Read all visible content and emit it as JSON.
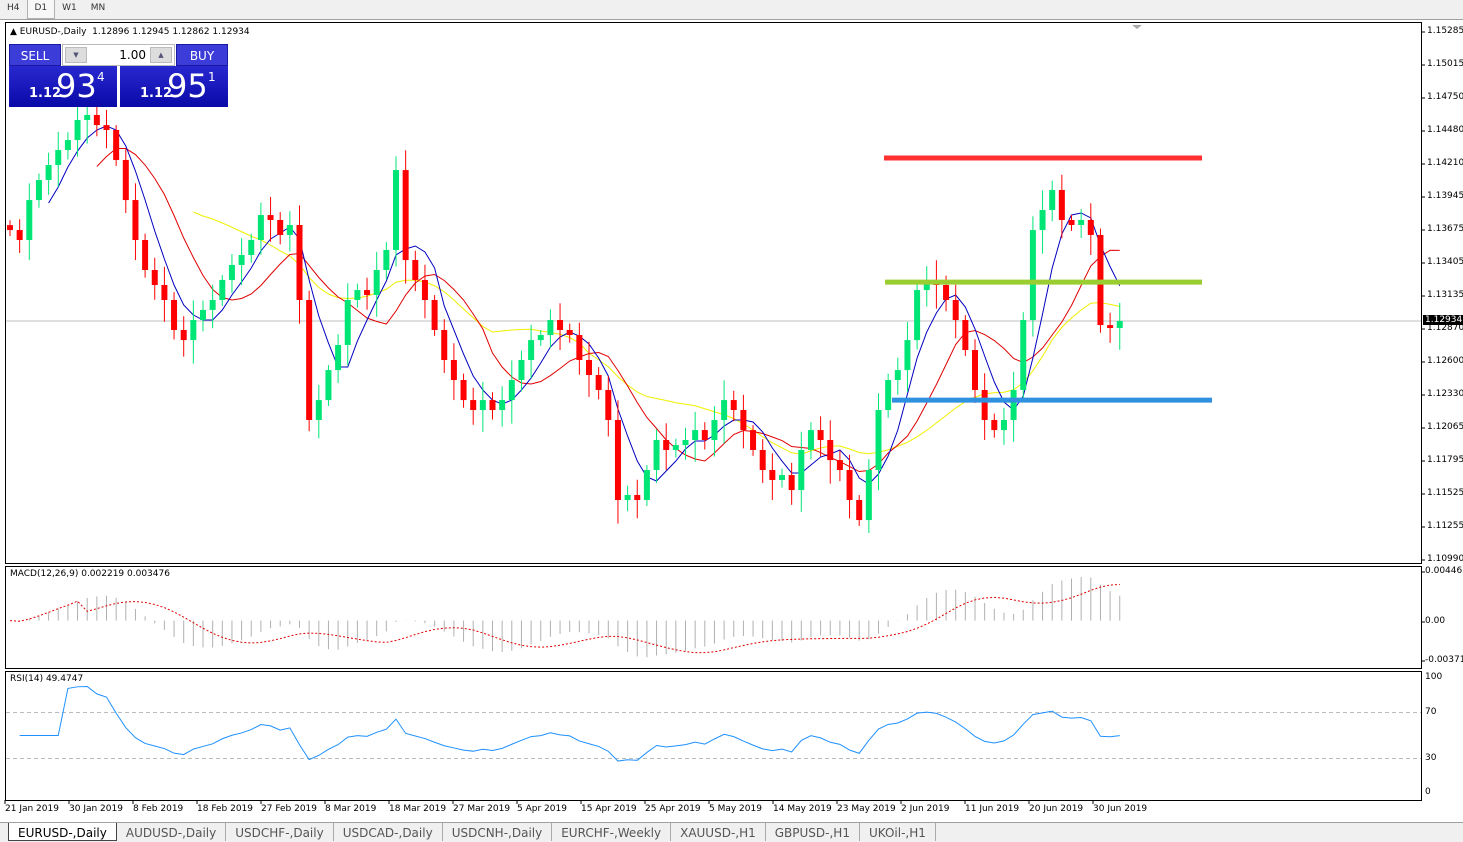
{
  "timeframes": [
    "H4",
    "D1",
    "W1",
    "MN"
  ],
  "active_timeframe": "D1",
  "chart_header": {
    "symbol": "EURUSD-,Daily",
    "ohlc": "1.12896 1.12945 1.12862 1.12934"
  },
  "one_click": {
    "sell_label": "SELL",
    "buy_label": "BUY",
    "lot": "1.00",
    "sell_big": "1.12",
    "sell_pips": "93",
    "sell_frac": "4",
    "buy_big": "1.12",
    "buy_pips": "95",
    "buy_frac": "1"
  },
  "price_axis": [
    "1.15285",
    "1.15015",
    "1.14750",
    "1.14480",
    "1.14210",
    "1.13945",
    "1.13675",
    "1.13405",
    "1.13135",
    "1.12870",
    "1.12600",
    "1.12330",
    "1.12065",
    "1.11795",
    "1.11525",
    "1.11255",
    "1.10990"
  ],
  "price_range": [
    1.1099,
    1.15285
  ],
  "current_price": "1.12934",
  "closes": [
    1.13674,
    1.13593,
    1.13918,
    1.14081,
    1.14203,
    1.14325,
    1.14406,
    1.14569,
    1.1461,
    1.14528,
    1.14488,
    1.14244,
    1.13918,
    1.13593,
    1.13349,
    1.13227,
    1.13105,
    1.12861,
    1.12779,
    1.12942,
    1.13024,
    1.13105,
    1.13268,
    1.1339,
    1.13471,
    1.13593,
    1.13796,
    1.13756,
    1.13634,
    1.13715,
    1.13105,
    1.12129,
    1.12291,
    1.12535,
    1.12739,
    1.13105,
    1.13186,
    1.13146,
    1.13349,
    1.13512,
    1.14162,
    1.1343,
    1.13268,
    1.13105,
    1.12861,
    1.12617,
    1.12454,
    1.12291,
    1.1221,
    1.12291,
    1.1221,
    1.12291,
    1.12454,
    1.12617,
    1.12779,
    1.1282,
    1.12942,
    1.12861,
    1.1282,
    1.12617,
    1.12495,
    1.12373,
    1.12129,
    1.11478,
    1.11519,
    1.11478,
    1.11722,
    1.11966,
    1.11885,
    1.11925,
    1.11966,
    1.12047,
    1.11966,
    1.12129,
    1.12291,
    1.1221,
    1.12047,
    1.11885,
    1.11722,
    1.11641,
    1.11681,
    1.11559,
    1.11885,
    1.12047,
    1.11966,
    1.11803,
    1.11722,
    1.11478,
    1.11315,
    1.11722,
    1.1221,
    1.12454,
    1.12535,
    1.12779,
    1.13186,
    1.13268,
    1.13227,
    1.13105,
    1.12942,
    1.12698,
    1.12373,
    1.12129,
    1.12047,
    1.12129,
    1.12373,
    1.12942,
    1.13674,
    1.13837,
    1.14,
    1.13756,
    1.13715,
    1.13756,
    1.13634,
    1.12901,
    1.12877,
    1.12934
  ],
  "levels": [
    {
      "price": 1.1426,
      "color": "#ff3030"
    },
    {
      "price": 1.1325,
      "color": "#9acd32"
    },
    {
      "price": 1.12291,
      "color": "#3090e0"
    }
  ],
  "colors": {
    "bull": "#00e676",
    "bear": "#ff0000",
    "ma_fast": "#0000c0",
    "ma_mid": "#e00000",
    "ma_slow": "#f0f000"
  },
  "macd": {
    "label": "MACD(12,26,9) 0.002219 0.003476",
    "axis": [
      "0.004465",
      "0.00",
      "-0.003715"
    ],
    "range": [
      -0.003715,
      0.004465
    ]
  },
  "rsi": {
    "label": "RSI(14) 49.4747",
    "axis": [
      "100",
      "70",
      "30",
      "0"
    ],
    "levels": [
      70,
      30
    ]
  },
  "dates": [
    "21 Jan 2019",
    "30 Jan 2019",
    "8 Feb 2019",
    "18 Feb 2019",
    "27 Feb 2019",
    "8 Mar 2019",
    "18 Mar 2019",
    "27 Mar 2019",
    "5 Apr 2019",
    "15 Apr 2019",
    "25 Apr 2019",
    "5 May 2019",
    "14 May 2019",
    "23 May 2019",
    "2 Jun 2019",
    "11 Jun 2019",
    "20 Jun 2019",
    "30 Jun 2019"
  ],
  "tabs": [
    "EURUSD-,Daily",
    "AUDUSD-,Daily",
    "USDCHF-,Daily",
    "USDCAD-,Daily",
    "USDCNH-,Daily",
    "EURCHF-,Weekly",
    "XAUUSD-,H1",
    "GBPUSD-,H1",
    "UKOil-,H1"
  ]
}
